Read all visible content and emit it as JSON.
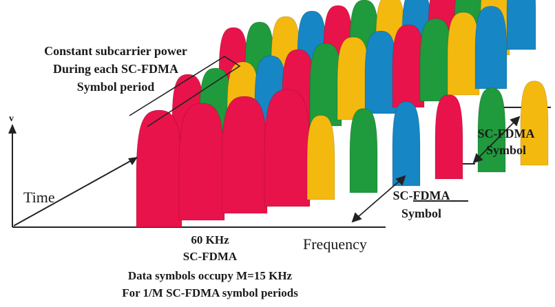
{
  "annotation": {
    "line1": "Constant subcarrier power",
    "line2": "During each SC-FDMA",
    "line3": "Symbol period"
  },
  "axes": {
    "vertical_label": "v",
    "time_label": "Time",
    "frequency_label": "Frequency"
  },
  "symbol_label_back": {
    "line1": "SC-FDMA",
    "line2": "Symbol"
  },
  "symbol_label_front": {
    "line1": "SC-FDMA",
    "line2": "Symbol"
  },
  "caption": {
    "line1": "60 KHz",
    "line2": "SC-FDMA",
    "line3": "Data symbols occupy M=15 KHz",
    "line4": "For 1/M SC-FDMA symbol periods"
  },
  "colors": {
    "red": "#e8134a",
    "green": "#1f9a3c",
    "yellow": "#f4b90f",
    "blue": "#1686c4",
    "line": "#222222"
  }
}
